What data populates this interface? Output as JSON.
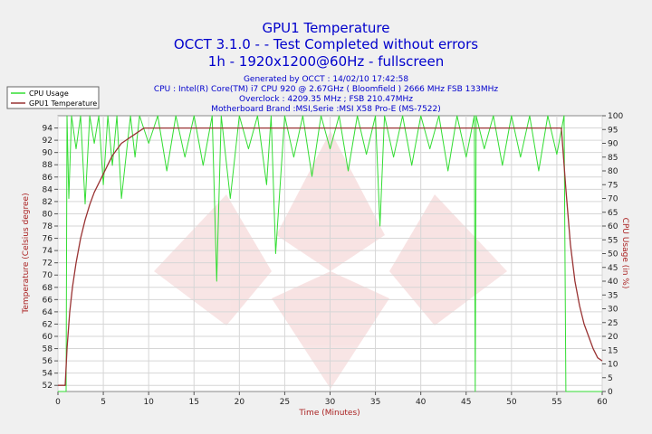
{
  "header": {
    "title": "GPU1 Temperature",
    "subtitle1": "OCCT 3.1.0 -  - Test Completed without errors",
    "subtitle2": "1h - 1920x1200@60Hz - fullscreen",
    "info": [
      "Generated by OCCT : 14/02/10 17:42:58",
      "CPU : Intel(R) Core(TM) i7 CPU 920 @ 2.67GHz ( Bloomfield ) 2666 MHz FSB 133MHz",
      "Overclock : 4209.35 MHz ; FSB 210.47MHz",
      "Motherboard Brand :MSI,Serie :MSI X58 Pro-E (MS-7522)"
    ]
  },
  "legend": {
    "position": "top-left",
    "items": [
      {
        "label": "CPU Usage",
        "color": "#33dd33"
      },
      {
        "label": "GPU1 Temperature",
        "color": "#993333"
      }
    ]
  },
  "chart_data": {
    "type": "line",
    "title": "GPU1 Temperature",
    "xlabel": "Time (Minutes)",
    "ylabel_left": "Temperature (Celsius degree)",
    "ylabel_right": "CPU Usage (in %)",
    "xlim": [
      0,
      60
    ],
    "ylim_left": [
      51,
      96
    ],
    "ylim_right": [
      0,
      100
    ],
    "x_ticks": [
      0,
      5,
      10,
      15,
      20,
      25,
      30,
      35,
      40,
      45,
      50,
      55,
      60
    ],
    "y_left_ticks": [
      52,
      54,
      56,
      58,
      60,
      62,
      64,
      66,
      68,
      70,
      72,
      74,
      76,
      78,
      80,
      82,
      84,
      86,
      88,
      90,
      92,
      94
    ],
    "y_right_ticks": [
      0,
      5,
      10,
      15,
      20,
      25,
      30,
      35,
      40,
      45,
      50,
      55,
      60,
      65,
      70,
      75,
      80,
      85,
      90,
      95,
      100
    ],
    "grid": true,
    "series": [
      {
        "name": "GPU1 Temperature",
        "axis": "left",
        "color": "#993333",
        "x": [
          0,
          0.8,
          1.0,
          1.3,
          1.6,
          2.0,
          2.5,
          3.0,
          3.5,
          4.0,
          4.5,
          5.0,
          5.5,
          6.0,
          6.5,
          7.0,
          7.5,
          8.0,
          8.5,
          9.0,
          9.5,
          10.0,
          12,
          15,
          20,
          25,
          30,
          35,
          40,
          45,
          50,
          55,
          55.5,
          56.0,
          56.5,
          57.0,
          57.5,
          58.0,
          58.5,
          59.0,
          59.5,
          60.0
        ],
        "y": [
          52,
          52,
          58,
          64,
          68,
          72,
          76,
          79,
          81.5,
          83.5,
          85,
          86.5,
          88,
          89.5,
          90.5,
          91.5,
          92,
          92.5,
          93,
          93.5,
          94,
          94,
          94,
          94,
          94,
          94,
          94,
          94,
          94,
          94,
          94,
          94,
          94,
          84,
          75,
          69,
          65,
          62,
          60,
          58,
          56.5,
          56
        ]
      },
      {
        "name": "CPU Usage",
        "axis": "right",
        "color": "#33dd33",
        "summary": "Fluctuates mostly between about 65% and 100% from minute 1 to 56, with brief drops to 0% near minute 46 and minute 56; 0% before minute 1 and after minute 56.",
        "x": [
          0,
          0.9,
          1.0,
          1.2,
          1.5,
          2.0,
          2.5,
          3.0,
          3.5,
          4.0,
          4.5,
          5.0,
          5.5,
          6.0,
          6.5,
          7.0,
          8.0,
          8.5,
          9.0,
          10.0,
          11.0,
          12.0,
          13.0,
          14.0,
          15.0,
          16.0,
          17.0,
          17.5,
          18.0,
          19.0,
          20.0,
          21.0,
          22.0,
          23.0,
          23.5,
          24.0,
          25.0,
          26.0,
          27.0,
          28.0,
          29.0,
          30.0,
          31.0,
          32.0,
          33.0,
          34.0,
          35.0,
          35.5,
          36.0,
          37.0,
          38.0,
          39.0,
          40.0,
          41.0,
          42.0,
          43.0,
          44.0,
          45.0,
          45.9,
          46.0,
          46.1,
          47.0,
          48.0,
          49.0,
          50.0,
          51.0,
          52.0,
          53.0,
          54.0,
          55.0,
          55.8,
          56.0,
          56.3,
          57.0,
          60.0
        ],
        "y": [
          0,
          0,
          100,
          70,
          100,
          88,
          100,
          68,
          100,
          90,
          100,
          75,
          100,
          82,
          100,
          70,
          100,
          85,
          100,
          90,
          100,
          80,
          100,
          85,
          100,
          82,
          100,
          40,
          100,
          70,
          100,
          88,
          100,
          75,
          100,
          50,
          100,
          85,
          100,
          78,
          100,
          88,
          100,
          80,
          100,
          86,
          100,
          60,
          100,
          85,
          100,
          82,
          100,
          88,
          100,
          80,
          100,
          85,
          100,
          0,
          100,
          88,
          100,
          82,
          100,
          85,
          100,
          80,
          100,
          86,
          100,
          0,
          0,
          0,
          0
        ]
      }
    ]
  }
}
